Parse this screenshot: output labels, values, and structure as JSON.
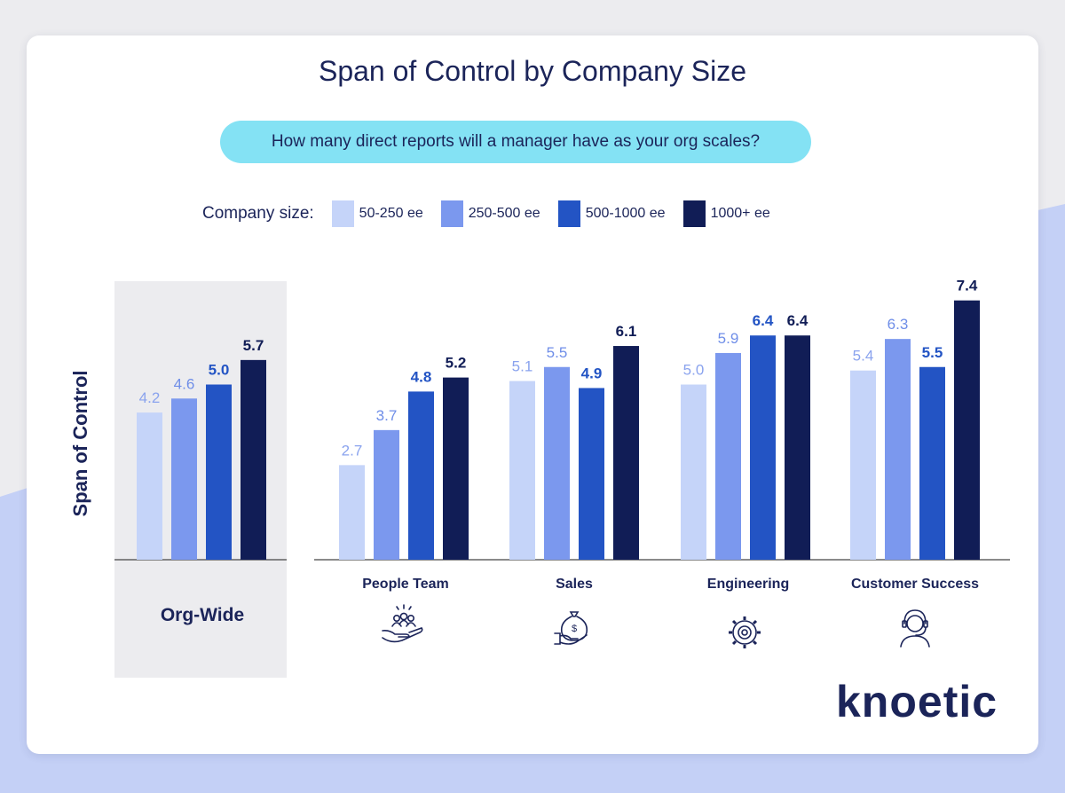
{
  "chart_data": {
    "type": "bar",
    "title": "Span of Control by Company Size",
    "subtitle": "How many direct reports will a manager have as your org scales?",
    "legend_label": "Company size:",
    "ylabel": "Span of Control",
    "xlabel": "",
    "ylim": [
      0,
      8
    ],
    "categories": [
      "Org-Wide",
      "People Team",
      "Sales",
      "Engineering",
      "Customer Success"
    ],
    "series": [
      {
        "name": "50-250 ee",
        "color": "#c5d4f9",
        "label_color": "#8aa3ee",
        "values": [
          4.2,
          2.7,
          5.1,
          5.0,
          5.4
        ]
      },
      {
        "name": "250-500 ee",
        "color": "#7b98ee",
        "label_color": "#6f8ee8",
        "values": [
          4.6,
          3.7,
          5.5,
          5.9,
          6.3
        ]
      },
      {
        "name": "500-1000 ee",
        "color": "#2354c4",
        "label_color": "#2354c4",
        "values": [
          5.0,
          4.8,
          4.9,
          6.4,
          5.5
        ]
      },
      {
        "name": "1000+ ee",
        "color": "#111d56",
        "label_color": "#111d56",
        "values": [
          5.7,
          5.2,
          6.1,
          6.4,
          7.4
        ]
      }
    ],
    "category_icons": [
      "",
      "people-team-icon",
      "money-bag-icon",
      "gear-icon",
      "headset-agent-icon"
    ],
    "value_labels": [
      [
        "4.2",
        "4.6",
        "5.0",
        "5.7"
      ],
      [
        "2.7",
        "3.7",
        "4.8",
        "5.2"
      ],
      [
        "5.1",
        "5.5",
        "4.9",
        "6.1"
      ],
      [
        "5.0",
        "5.9",
        "6.4",
        "6.4"
      ],
      [
        "5.4",
        "6.3",
        "5.5",
        "7.4"
      ]
    ]
  },
  "brand": {
    "logo_text": "knoetic",
    "colors": {
      "navy": "#1b2459",
      "cyan_pill": "#84e2f4",
      "highlight_panel": "#ececef"
    }
  }
}
